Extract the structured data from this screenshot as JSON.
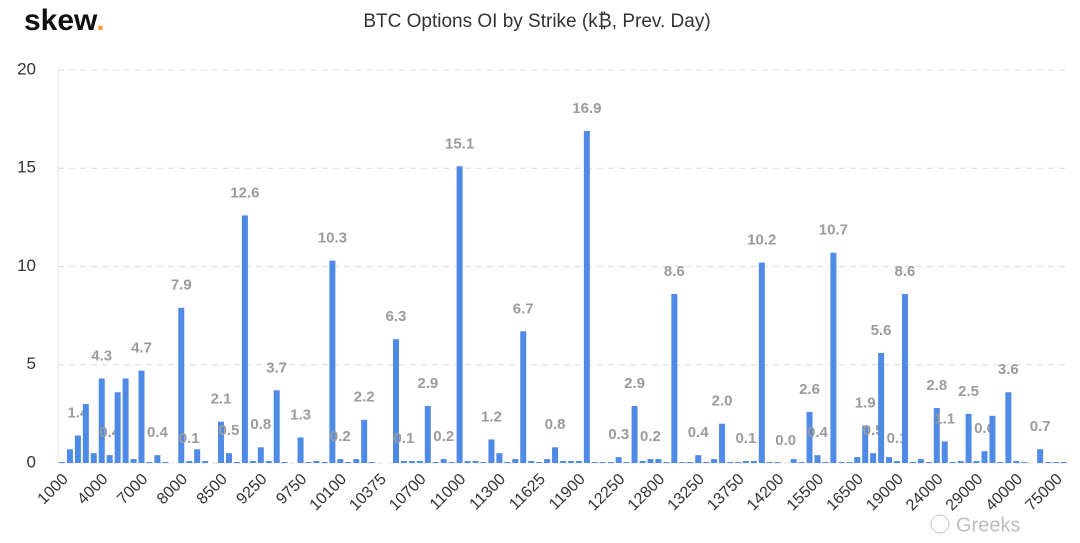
{
  "logo": "skew",
  "logo_dot": ".",
  "watermark": "Greeks",
  "chart_data": {
    "type": "bar",
    "title": "BTC Options OI by Strike (k₿, Prev. Day)",
    "categories": [
      "1000",
      null,
      null,
      null,
      null,
      "4000",
      null,
      null,
      null,
      null,
      "7000",
      null,
      null,
      null,
      null,
      "8000",
      null,
      null,
      null,
      null,
      "8500",
      null,
      null,
      null,
      null,
      "9250",
      null,
      null,
      null,
      null,
      "9750",
      null,
      null,
      null,
      null,
      "10100",
      null,
      null,
      null,
      null,
      "10375",
      null,
      null,
      null,
      null,
      "10700",
      null,
      null,
      null,
      null,
      "11000",
      null,
      null,
      null,
      null,
      "11300",
      null,
      null,
      null,
      null,
      "11625",
      null,
      null,
      null,
      null,
      "11900",
      null,
      null,
      null,
      null,
      "12250",
      null,
      null,
      null,
      null,
      "12800",
      null,
      null,
      null,
      null,
      "13250",
      null,
      null,
      null,
      null,
      "13750",
      null,
      null,
      null,
      null,
      "14200",
      null,
      null,
      null,
      null,
      "15500",
      null,
      null,
      null,
      null,
      "16500",
      null,
      null,
      null,
      null,
      "19000",
      null,
      null,
      null,
      null,
      "24000",
      null,
      null,
      null,
      null,
      "29000",
      null,
      null,
      null,
      null,
      "40000",
      null,
      null,
      null,
      null,
      "75000",
      null
    ],
    "values": [
      0.05,
      0.7,
      1.4,
      3.0,
      0.5,
      4.3,
      0.4,
      3.6,
      4.3,
      0.2,
      4.7,
      0.05,
      0.4,
      0.05,
      0,
      7.9,
      0.1,
      0.7,
      0.1,
      0,
      2.1,
      0.5,
      0.05,
      12.6,
      0.1,
      0.8,
      0.1,
      3.7,
      0.05,
      0,
      1.3,
      0.05,
      0.1,
      0.05,
      10.3,
      0.2,
      0.05,
      0.2,
      2.2,
      0.05,
      0,
      0,
      6.3,
      0.1,
      0.1,
      0.1,
      2.9,
      0.05,
      0.2,
      0.05,
      15.1,
      0.1,
      0.1,
      0.05,
      1.2,
      0.5,
      0.05,
      0.2,
      6.7,
      0.1,
      0.05,
      0.2,
      0.8,
      0.1,
      0.1,
      0.1,
      16.9,
      0.05,
      0.05,
      0.05,
      0.3,
      0.05,
      2.9,
      0.1,
      0.2,
      0.2,
      0.05,
      8.6,
      0.05,
      0.05,
      0.4,
      0.05,
      0.2,
      2.0,
      0.05,
      0.05,
      0.1,
      0.1,
      10.2,
      0.05,
      0.05,
      0,
      0.2,
      0.05,
      2.6,
      0.4,
      0.05,
      10.7,
      0.05,
      0.05,
      0.3,
      1.9,
      0.5,
      5.6,
      0.3,
      0.1,
      8.6,
      0.05,
      0.2,
      0.05,
      2.8,
      1.1,
      0.05,
      0.1,
      2.5,
      0.1,
      0.6,
      2.4,
      0.05,
      3.6,
      0.1,
      0.05,
      0,
      0.7,
      0.05,
      0.05,
      0.05
    ],
    "value_labels": [
      null,
      null,
      "1.4",
      null,
      null,
      "4.3",
      "0.4",
      null,
      null,
      null,
      "4.7",
      null,
      "0.4",
      null,
      null,
      "7.9",
      "0.1",
      null,
      null,
      null,
      "2.1",
      "0.5",
      null,
      "12.6",
      null,
      "0.8",
      null,
      "3.7",
      null,
      null,
      "1.3",
      null,
      null,
      null,
      "10.3",
      "0.2",
      null,
      null,
      "2.2",
      null,
      null,
      null,
      "6.3",
      "0.1",
      null,
      null,
      "2.9",
      null,
      "0.2",
      null,
      "15.1",
      null,
      null,
      null,
      "1.2",
      null,
      null,
      null,
      "6.7",
      null,
      null,
      null,
      "0.8",
      null,
      null,
      null,
      "16.9",
      null,
      null,
      null,
      "0.3",
      null,
      "2.9",
      null,
      "0.2",
      null,
      null,
      "8.6",
      null,
      null,
      "0.4",
      null,
      null,
      "2.0",
      null,
      null,
      "0.1",
      null,
      "10.2",
      null,
      null,
      "0.0",
      null,
      null,
      "2.6",
      "0.4",
      null,
      "10.7",
      null,
      null,
      null,
      "1.9",
      "0.5",
      "5.6",
      null,
      "0.1",
      "8.6",
      null,
      null,
      null,
      "2.8",
      "1.1",
      null,
      null,
      "2.5",
      null,
      "0.6",
      null,
      null,
      "3.6",
      null,
      null,
      null,
      "0.7",
      null,
      null,
      null
    ],
    "color": "#4f8be6",
    "ylim": [
      0,
      20
    ],
    "yticks": [
      0,
      5,
      10,
      15,
      20
    ],
    "grid": true
  }
}
